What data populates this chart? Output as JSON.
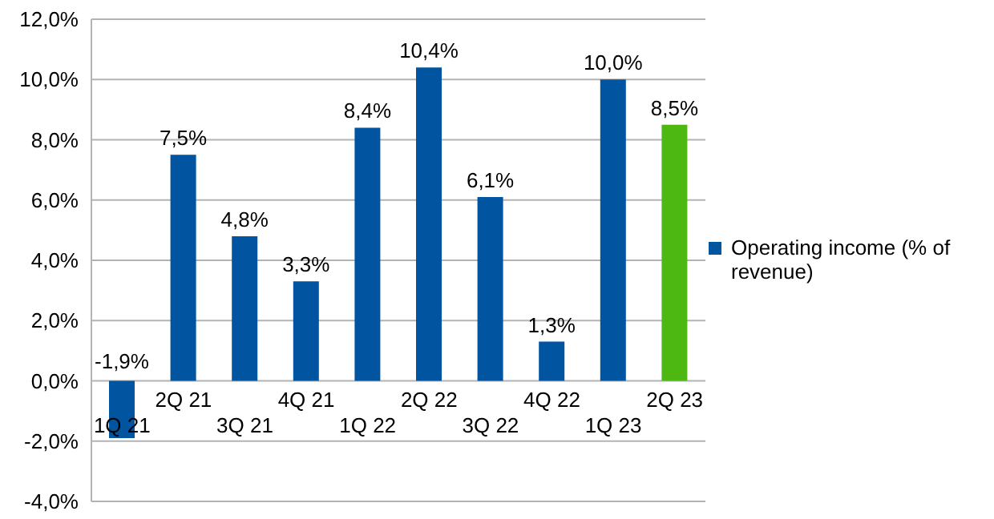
{
  "chart_data": {
    "type": "bar",
    "categories": [
      "1Q 21",
      "2Q 21",
      "3Q 21",
      "4Q 21",
      "1Q 22",
      "2Q 22",
      "3Q 22",
      "4Q 22",
      "1Q 23",
      "2Q 23"
    ],
    "series": [
      {
        "name": "Operating income (% of revenue)",
        "color": "#0054a0",
        "colors": [
          "#0054a0",
          "#0054a0",
          "#0054a0",
          "#0054a0",
          "#0054a0",
          "#0054a0",
          "#0054a0",
          "#0054a0",
          "#0054a0",
          "#4cb811"
        ],
        "values": [
          -1.9,
          7.5,
          4.8,
          3.3,
          8.4,
          10.4,
          6.1,
          1.3,
          10.0,
          8.5
        ],
        "value_labels": [
          "-1,9%",
          "7,5%",
          "4,8%",
          "3,3%",
          "8,4%",
          "10,4%",
          "6,1%",
          "1,3%",
          "10,0%",
          "8,5%"
        ]
      }
    ],
    "ylim": [
      -4,
      12
    ],
    "yticks": [
      {
        "value": -4,
        "label": "-4,0%"
      },
      {
        "value": -2,
        "label": "-2,0%"
      },
      {
        "value": 0,
        "label": "0,0%"
      },
      {
        "value": 2,
        "label": "2,0%"
      },
      {
        "value": 4,
        "label": "4,0%"
      },
      {
        "value": 6,
        "label": "6,0%"
      },
      {
        "value": 8,
        "label": "8,0%"
      },
      {
        "value": 10,
        "label": "10,0%"
      },
      {
        "value": 12,
        "label": "12,0%"
      }
    ],
    "grid": "y",
    "legend": "right"
  }
}
